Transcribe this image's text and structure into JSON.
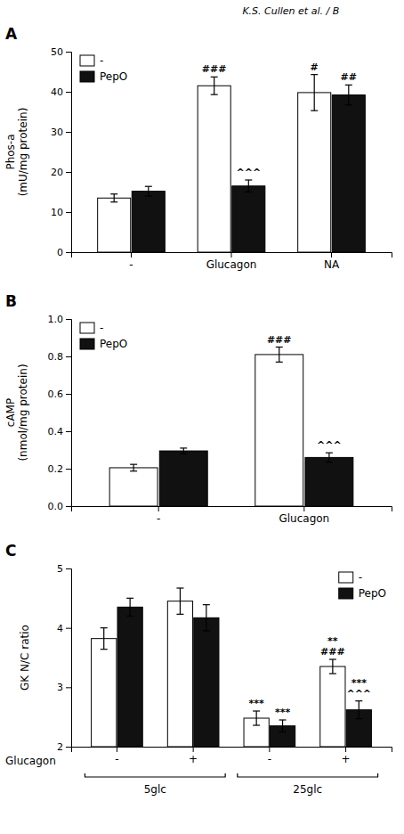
{
  "header": "K.S. Cullen et al. / B",
  "chart_data": [
    {
      "type": "bar",
      "title": "A",
      "ylabel": "Phos-a\n(mU/mg protein)",
      "categories": [
        "-",
        "Glucagon",
        "NA"
      ],
      "series": [
        {
          "name": "-",
          "color": "#ffffff",
          "values": [
            13.5,
            41.5,
            39.8
          ],
          "errors": [
            1.0,
            2.2,
            4.5
          ],
          "annotations": [
            null,
            "###",
            "#"
          ]
        },
        {
          "name": "PepO",
          "color": "#111111",
          "values": [
            15.2,
            16.5,
            39.2
          ],
          "errors": [
            1.2,
            1.5,
            2.5
          ],
          "annotations": [
            null,
            "^^^",
            "##"
          ]
        }
      ],
      "ylim": [
        0,
        50
      ],
      "yticks": [
        0,
        10,
        20,
        30,
        40,
        50
      ],
      "grid": false,
      "legend": "upper left"
    },
    {
      "type": "bar",
      "title": "B",
      "ylabel": "cAMP\n(nmol/mg protein)",
      "categories": [
        "-",
        "Glucagon"
      ],
      "series": [
        {
          "name": "-",
          "color": "#ffffff",
          "values": [
            0.205,
            0.81
          ],
          "errors": [
            0.018,
            0.04
          ],
          "annotations": [
            null,
            "###"
          ]
        },
        {
          "name": "PepO",
          "color": "#111111",
          "values": [
            0.295,
            0.26
          ],
          "errors": [
            0.015,
            0.025
          ],
          "annotations": [
            null,
            "^^^"
          ]
        }
      ],
      "ylim": [
        0,
        1.0
      ],
      "yticks": [
        {
          "value": 0.0,
          "label": "0.0"
        },
        0.2,
        0.4,
        0.6,
        0.8,
        {
          "value": 1.0,
          "label": "1.0"
        }
      ],
      "grid": false,
      "legend": "upper left"
    },
    {
      "type": "bar",
      "title": "C",
      "ylabel": "GK N/C ratio",
      "xlabel": "Glucagon",
      "categories": [
        "-",
        "+",
        "-",
        "+"
      ],
      "category_groups": [
        {
          "label": "5glc",
          "size": 2
        },
        {
          "label": "25glc",
          "size": 2
        }
      ],
      "series": [
        {
          "name": "-",
          "color": "#ffffff",
          "values": [
            3.82,
            4.45,
            2.48,
            3.35
          ],
          "errors": [
            0.18,
            0.22,
            0.12,
            0.12
          ],
          "annotations": [
            null,
            null,
            "***",
            "**\n###"
          ]
        },
        {
          "name": "PepO",
          "color": "#111111",
          "values": [
            4.35,
            4.17,
            2.35,
            2.62
          ],
          "errors": [
            0.15,
            0.22,
            0.1,
            0.15
          ],
          "annotations": [
            null,
            null,
            "***",
            "***\n^^^"
          ]
        }
      ],
      "ylim": [
        2,
        5
      ],
      "yticks": [
        2,
        3,
        4,
        5
      ],
      "grid": false,
      "legend": "upper right"
    }
  ]
}
